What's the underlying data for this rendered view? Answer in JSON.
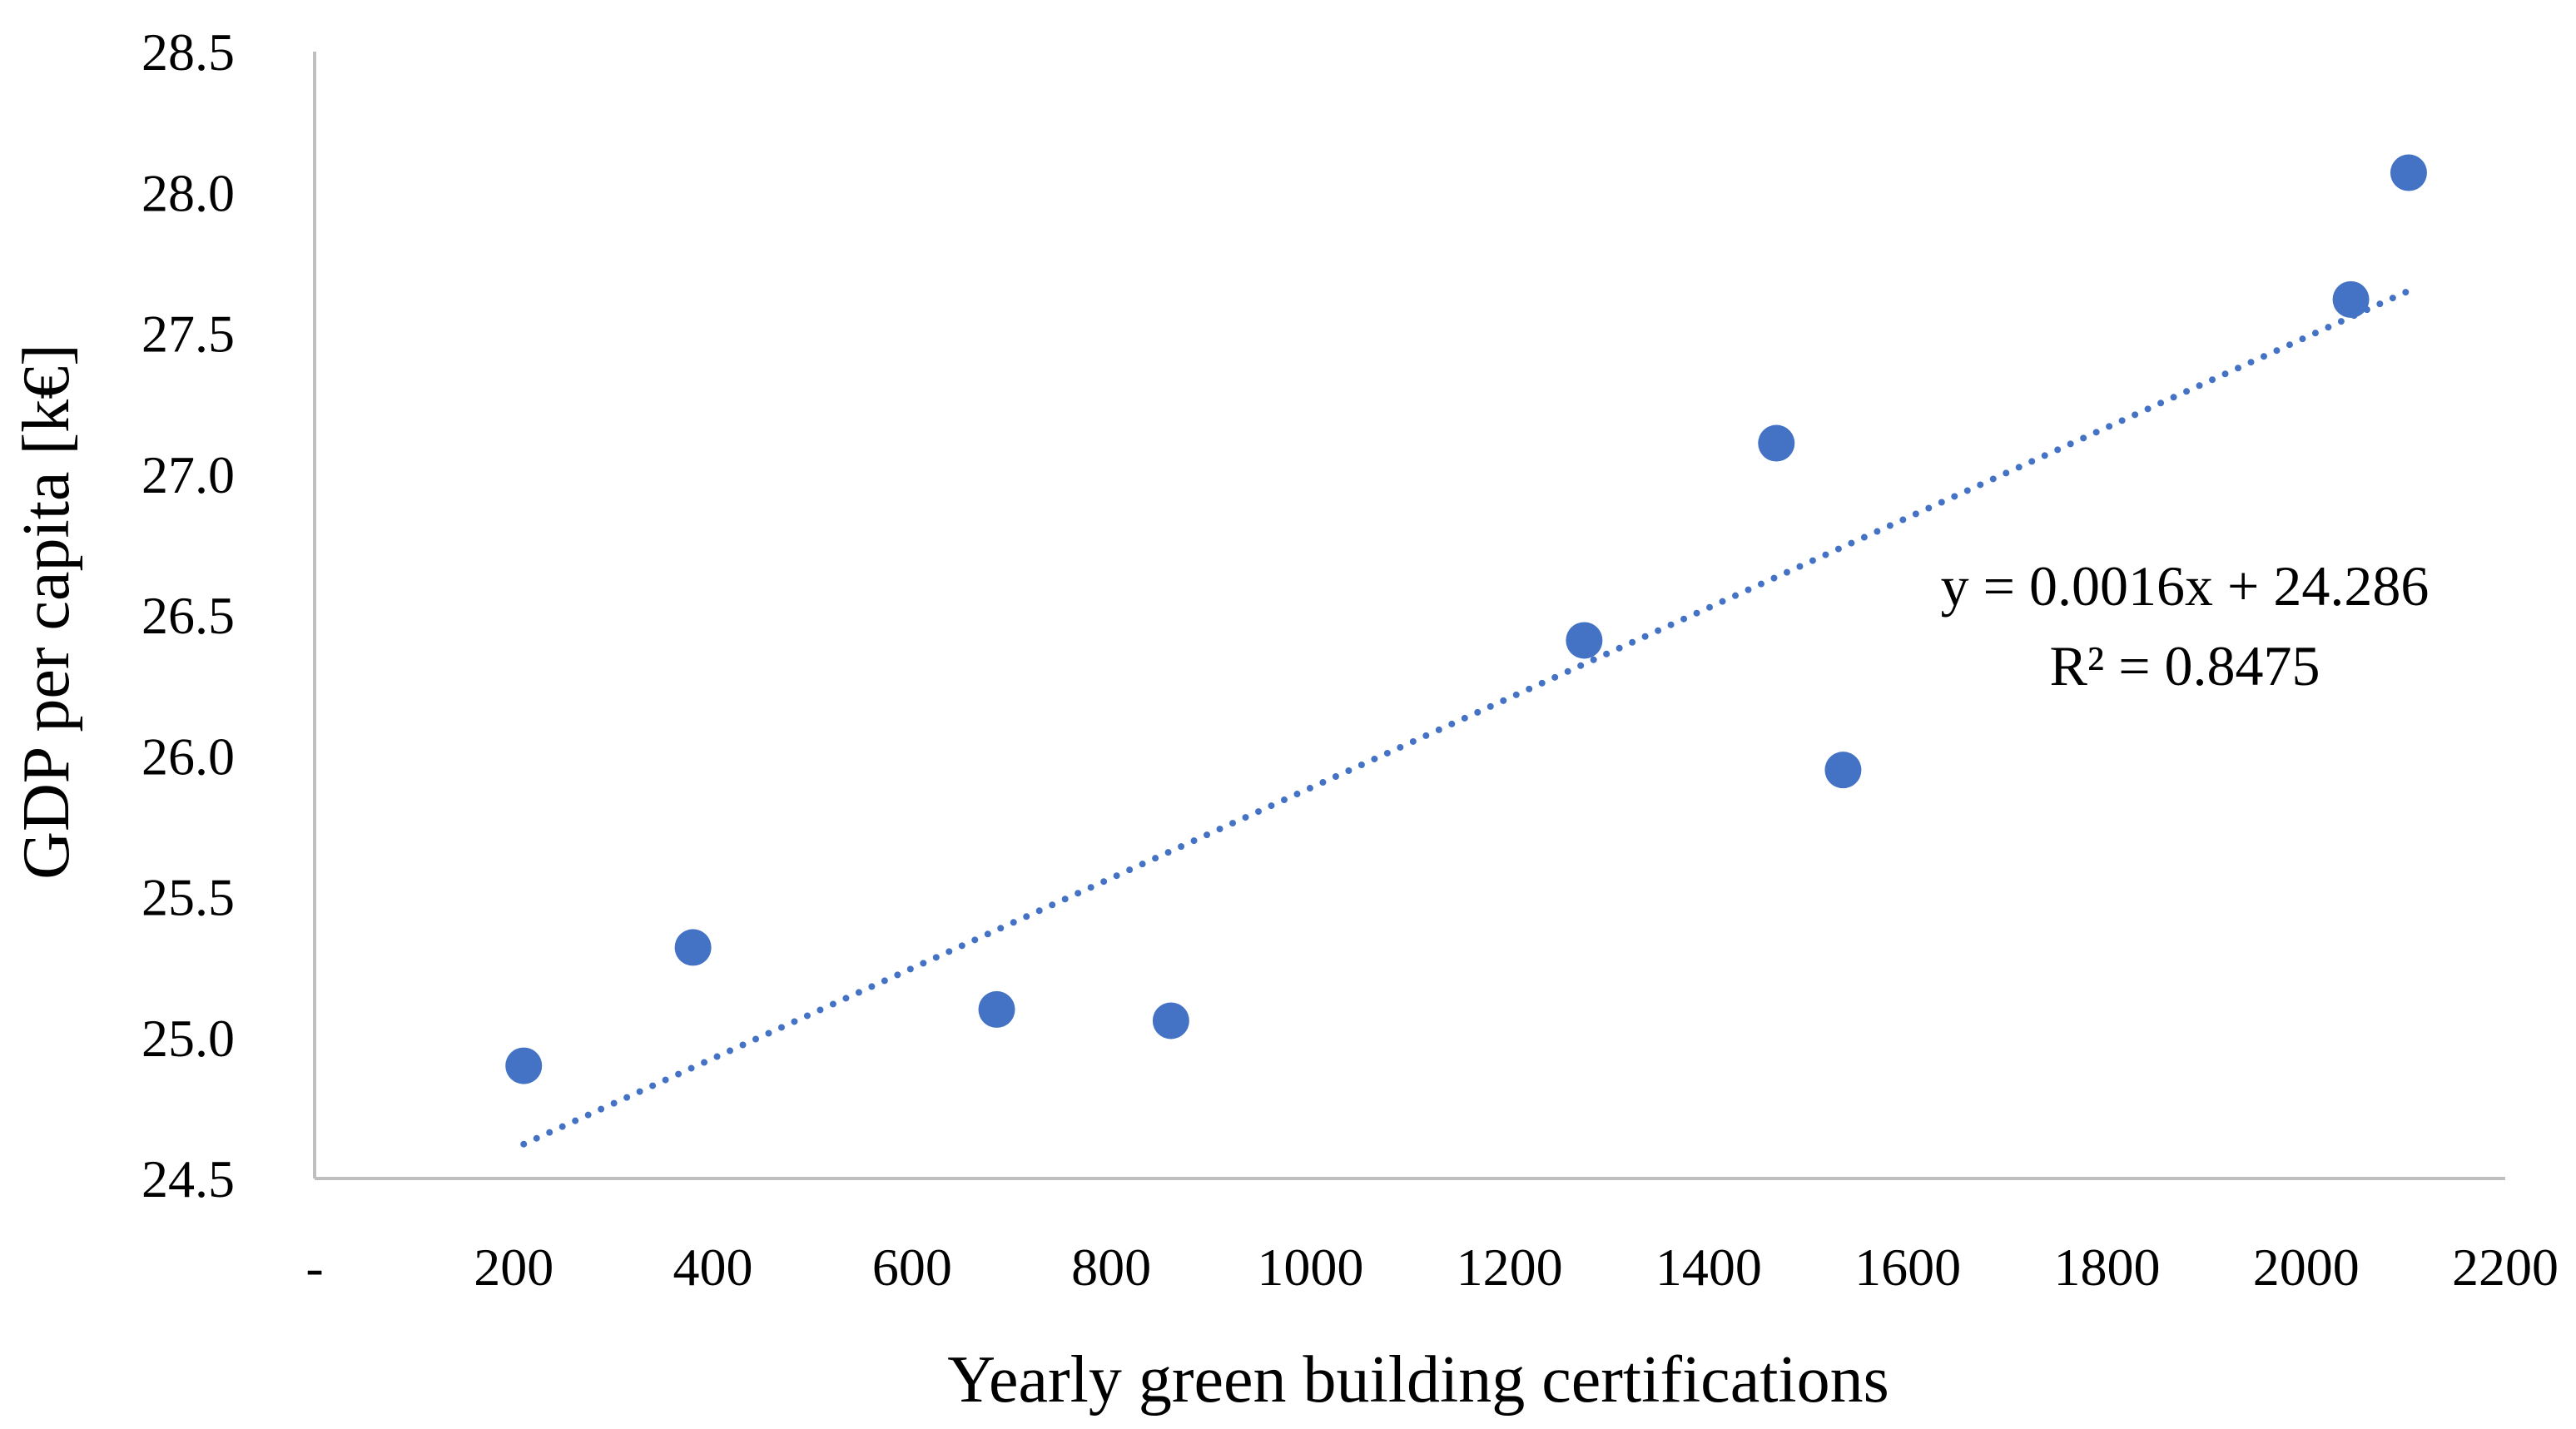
{
  "chart_data": {
    "type": "scatter",
    "title": "",
    "xlabel": "Yearly green building certifications",
    "ylabel": "GDP per capita [k€]",
    "xlim": [
      0,
      2200
    ],
    "ylim": [
      24.5,
      28.5
    ],
    "grid": false,
    "x_ticks": [
      {
        "value": 0,
        "label": "-"
      },
      {
        "value": 200,
        "label": "200"
      },
      {
        "value": 400,
        "label": "400"
      },
      {
        "value": 600,
        "label": "600"
      },
      {
        "value": 800,
        "label": "800"
      },
      {
        "value": 1000,
        "label": "1000"
      },
      {
        "value": 1200,
        "label": "1200"
      },
      {
        "value": 1400,
        "label": "1400"
      },
      {
        "value": 1600,
        "label": "1600"
      },
      {
        "value": 1800,
        "label": "1800"
      },
      {
        "value": 2000,
        "label": "2000"
      },
      {
        "value": 2200,
        "label": "2200"
      }
    ],
    "y_ticks": [
      {
        "value": 24.5,
        "label": "24.5"
      },
      {
        "value": 25.0,
        "label": "25.0"
      },
      {
        "value": 25.5,
        "label": "25.5"
      },
      {
        "value": 26.0,
        "label": "26.0"
      },
      {
        "value": 26.5,
        "label": "26.5"
      },
      {
        "value": 27.0,
        "label": "27.0"
      },
      {
        "value": 27.5,
        "label": "27.5"
      },
      {
        "value": 28.0,
        "label": "28.0"
      },
      {
        "value": 28.5,
        "label": "28.5"
      }
    ],
    "series": [
      {
        "name": "GDP per capita",
        "color": "#4472C4",
        "points": [
          {
            "x": 210,
            "y": 24.9
          },
          {
            "x": 380,
            "y": 25.32
          },
          {
            "x": 685,
            "y": 25.1
          },
          {
            "x": 860,
            "y": 25.06
          },
          {
            "x": 1275,
            "y": 26.41
          },
          {
            "x": 1468,
            "y": 27.11
          },
          {
            "x": 1535,
            "y": 25.95
          },
          {
            "x": 2045,
            "y": 27.62
          },
          {
            "x": 2103,
            "y": 28.07
          }
        ]
      }
    ],
    "trendline": {
      "type": "linear",
      "style": "dotted",
      "color": "#4472C4",
      "slope": 0.0016,
      "intercept": 24.286,
      "x_range": [
        210,
        2103
      ],
      "equation_label": "y = 0.0016x + 24.286",
      "r2_label": "R² = 0.8475"
    }
  }
}
